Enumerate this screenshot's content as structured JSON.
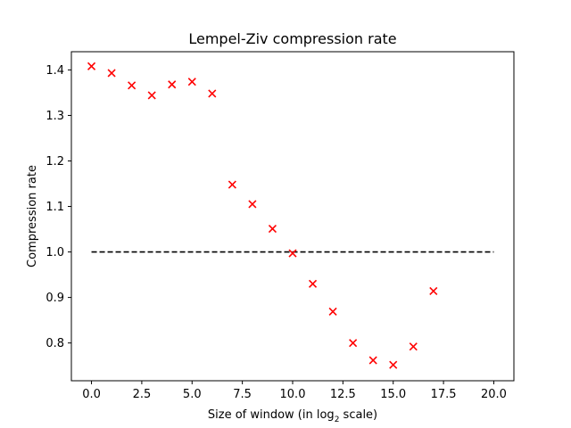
{
  "chart_data": {
    "type": "scatter",
    "title": "Lempel-Ziv compression rate",
    "xlabel_prefix": "Size of window (in log",
    "xlabel_sub": "2",
    "xlabel_suffix": " scale)",
    "ylabel": "Compression rate",
    "xlim": [
      -1.0,
      21.0
    ],
    "ylim": [
      0.717,
      1.44
    ],
    "xticks": [
      0.0,
      2.5,
      5.0,
      7.5,
      10.0,
      12.5,
      15.0,
      17.5,
      20.0
    ],
    "xtick_labels": [
      "0.0",
      "2.5",
      "5.0",
      "7.5",
      "10.0",
      "12.5",
      "15.0",
      "17.5",
      "20.0"
    ],
    "yticks": [
      0.8,
      0.9,
      1.0,
      1.1,
      1.2,
      1.3,
      1.4
    ],
    "ytick_labels": [
      "0.8",
      "0.9",
      "1.0",
      "1.1",
      "1.2",
      "1.3",
      "1.4"
    ],
    "grid": false,
    "series": [
      {
        "marker": "x",
        "color": "#ff0000",
        "x": [
          0,
          1,
          2,
          3,
          4,
          5,
          6,
          7,
          8,
          9,
          10,
          11,
          12,
          13,
          14,
          15,
          16,
          17
        ],
        "y": [
          1.408,
          1.393,
          1.366,
          1.344,
          1.368,
          1.374,
          1.348,
          1.148,
          1.105,
          1.051,
          0.997,
          0.93,
          0.869,
          0.8,
          0.762,
          0.752,
          0.792,
          0.914
        ]
      }
    ],
    "reference_line": {
      "style": "dashed",
      "color": "#000000",
      "x": [
        0,
        20
      ],
      "y": [
        1.0,
        1.0
      ]
    }
  }
}
